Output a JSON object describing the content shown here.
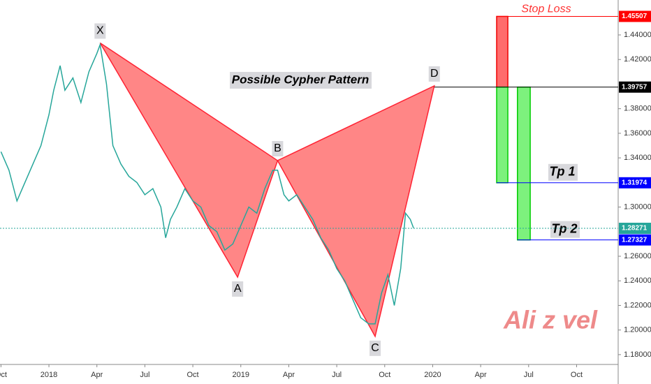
{
  "chart_data": {
    "type": "line",
    "annotation": "Possible Cypher Pattern",
    "watermark": "Ali z vel",
    "xlim": [
      -3.06,
      35.6
    ],
    "xticks": [
      {
        "value": -3,
        "label": "Oct"
      },
      {
        "value": 0,
        "label": "2018"
      },
      {
        "value": 3,
        "label": "Apr"
      },
      {
        "value": 6,
        "label": "Jul"
      },
      {
        "value": 9,
        "label": "Oct"
      },
      {
        "value": 12,
        "label": "2019"
      },
      {
        "value": 15,
        "label": "Apr"
      },
      {
        "value": 18,
        "label": "Jul"
      },
      {
        "value": 21,
        "label": "Oct"
      },
      {
        "value": 24,
        "label": "2020"
      },
      {
        "value": 27,
        "label": "Apr"
      },
      {
        "value": 30,
        "label": "Jul"
      },
      {
        "value": 33,
        "label": "Oct"
      }
    ],
    "ylim": [
      1.172,
      1.4684
    ],
    "yticks": [
      {
        "value": 1.18,
        "label": "1.18000"
      },
      {
        "value": 1.2,
        "label": "1.20000"
      },
      {
        "value": 1.22,
        "label": "1.22000"
      },
      {
        "value": 1.24,
        "label": "1.24000"
      },
      {
        "value": 1.26,
        "label": "1.26000"
      },
      {
        "value": 1.3,
        "label": "1.30000"
      },
      {
        "value": 1.34,
        "label": "1.34000"
      },
      {
        "value": 1.36,
        "label": "1.36000"
      },
      {
        "value": 1.38,
        "label": "1.38000"
      },
      {
        "value": 1.42,
        "label": "1.42000"
      },
      {
        "value": 1.44,
        "label": "1.44000"
      }
    ],
    "series": [
      {
        "color": "#26a69a",
        "x": [
          -3.0,
          -2.5,
          -2.0,
          -1.5,
          -1.0,
          -0.5,
          0,
          0.3,
          0.7,
          1.0,
          1.5,
          2.0,
          2.5,
          3.0,
          3.2,
          3.6,
          4.0,
          4.5,
          5.0,
          5.5,
          6.0,
          6.5,
          7.0,
          7.3,
          7.6,
          8.0,
          8.5,
          9.0,
          9.5,
          10.0,
          10.5,
          11.0,
          11.5,
          12.0,
          12.5,
          13.0,
          13.5,
          14.0,
          14.3,
          14.7,
          15.0,
          15.5,
          16.0,
          16.5,
          17.0,
          17.5,
          18.0,
          18.5,
          19.0,
          19.5,
          20.0,
          20.4,
          20.8,
          21.2,
          21.6,
          22.0,
          22.3,
          22.6,
          22.8
        ],
        "values": [
          1.345,
          1.33,
          1.305,
          1.32,
          1.335,
          1.35,
          1.375,
          1.395,
          1.415,
          1.395,
          1.405,
          1.385,
          1.41,
          1.425,
          1.432,
          1.4,
          1.35,
          1.335,
          1.325,
          1.32,
          1.31,
          1.315,
          1.3,
          1.275,
          1.29,
          1.3,
          1.315,
          1.305,
          1.3,
          1.285,
          1.28,
          1.265,
          1.27,
          1.285,
          1.3,
          1.295,
          1.315,
          1.33,
          1.33,
          1.31,
          1.305,
          1.31,
          1.3,
          1.29,
          1.275,
          1.265,
          1.25,
          1.24,
          1.225,
          1.21,
          1.205,
          1.205,
          1.23,
          1.245,
          1.22,
          1.25,
          1.295,
          1.29,
          1.283
        ]
      }
    ],
    "pattern": [
      {
        "label": "X",
        "x": 3.2,
        "y": 1.4335
      },
      {
        "label": "A",
        "x": 11.8,
        "y": 1.243
      },
      {
        "label": "B",
        "x": 14.3,
        "y": 1.3378
      },
      {
        "label": "C",
        "x": 20.4,
        "y": 1.1948
      },
      {
        "label": "D",
        "x": 24.1,
        "y": 1.3986
      }
    ],
    "levels": [
      {
        "name": "Stop Loss",
        "value": 1.45507,
        "color": "#ff0000",
        "from": 28.0
      },
      {
        "value": 1.39757,
        "color": "#000000",
        "from": 24.1
      },
      {
        "name": "Tp 1",
        "value": 1.31974,
        "color": "#0000ff",
        "from": 28.0
      },
      {
        "name": "Tp 2",
        "value": 1.27327,
        "color": "#0000ff",
        "from": 29.3
      },
      {
        "value": 1.28271,
        "color": "#26a69a",
        "from": -3.06
      }
    ],
    "boxes": [
      {
        "x": [
          28.0,
          28.7
        ],
        "y": [
          1.39757,
          1.45507
        ],
        "color": "#ff5252"
      },
      {
        "x": [
          28.0,
          28.7
        ],
        "y": [
          1.31974,
          1.39757
        ],
        "color": "#66ee66"
      },
      {
        "x": [
          29.3,
          30.1
        ],
        "y": [
          1.27327,
          1.39757
        ],
        "color": "#66ee66"
      }
    ]
  }
}
